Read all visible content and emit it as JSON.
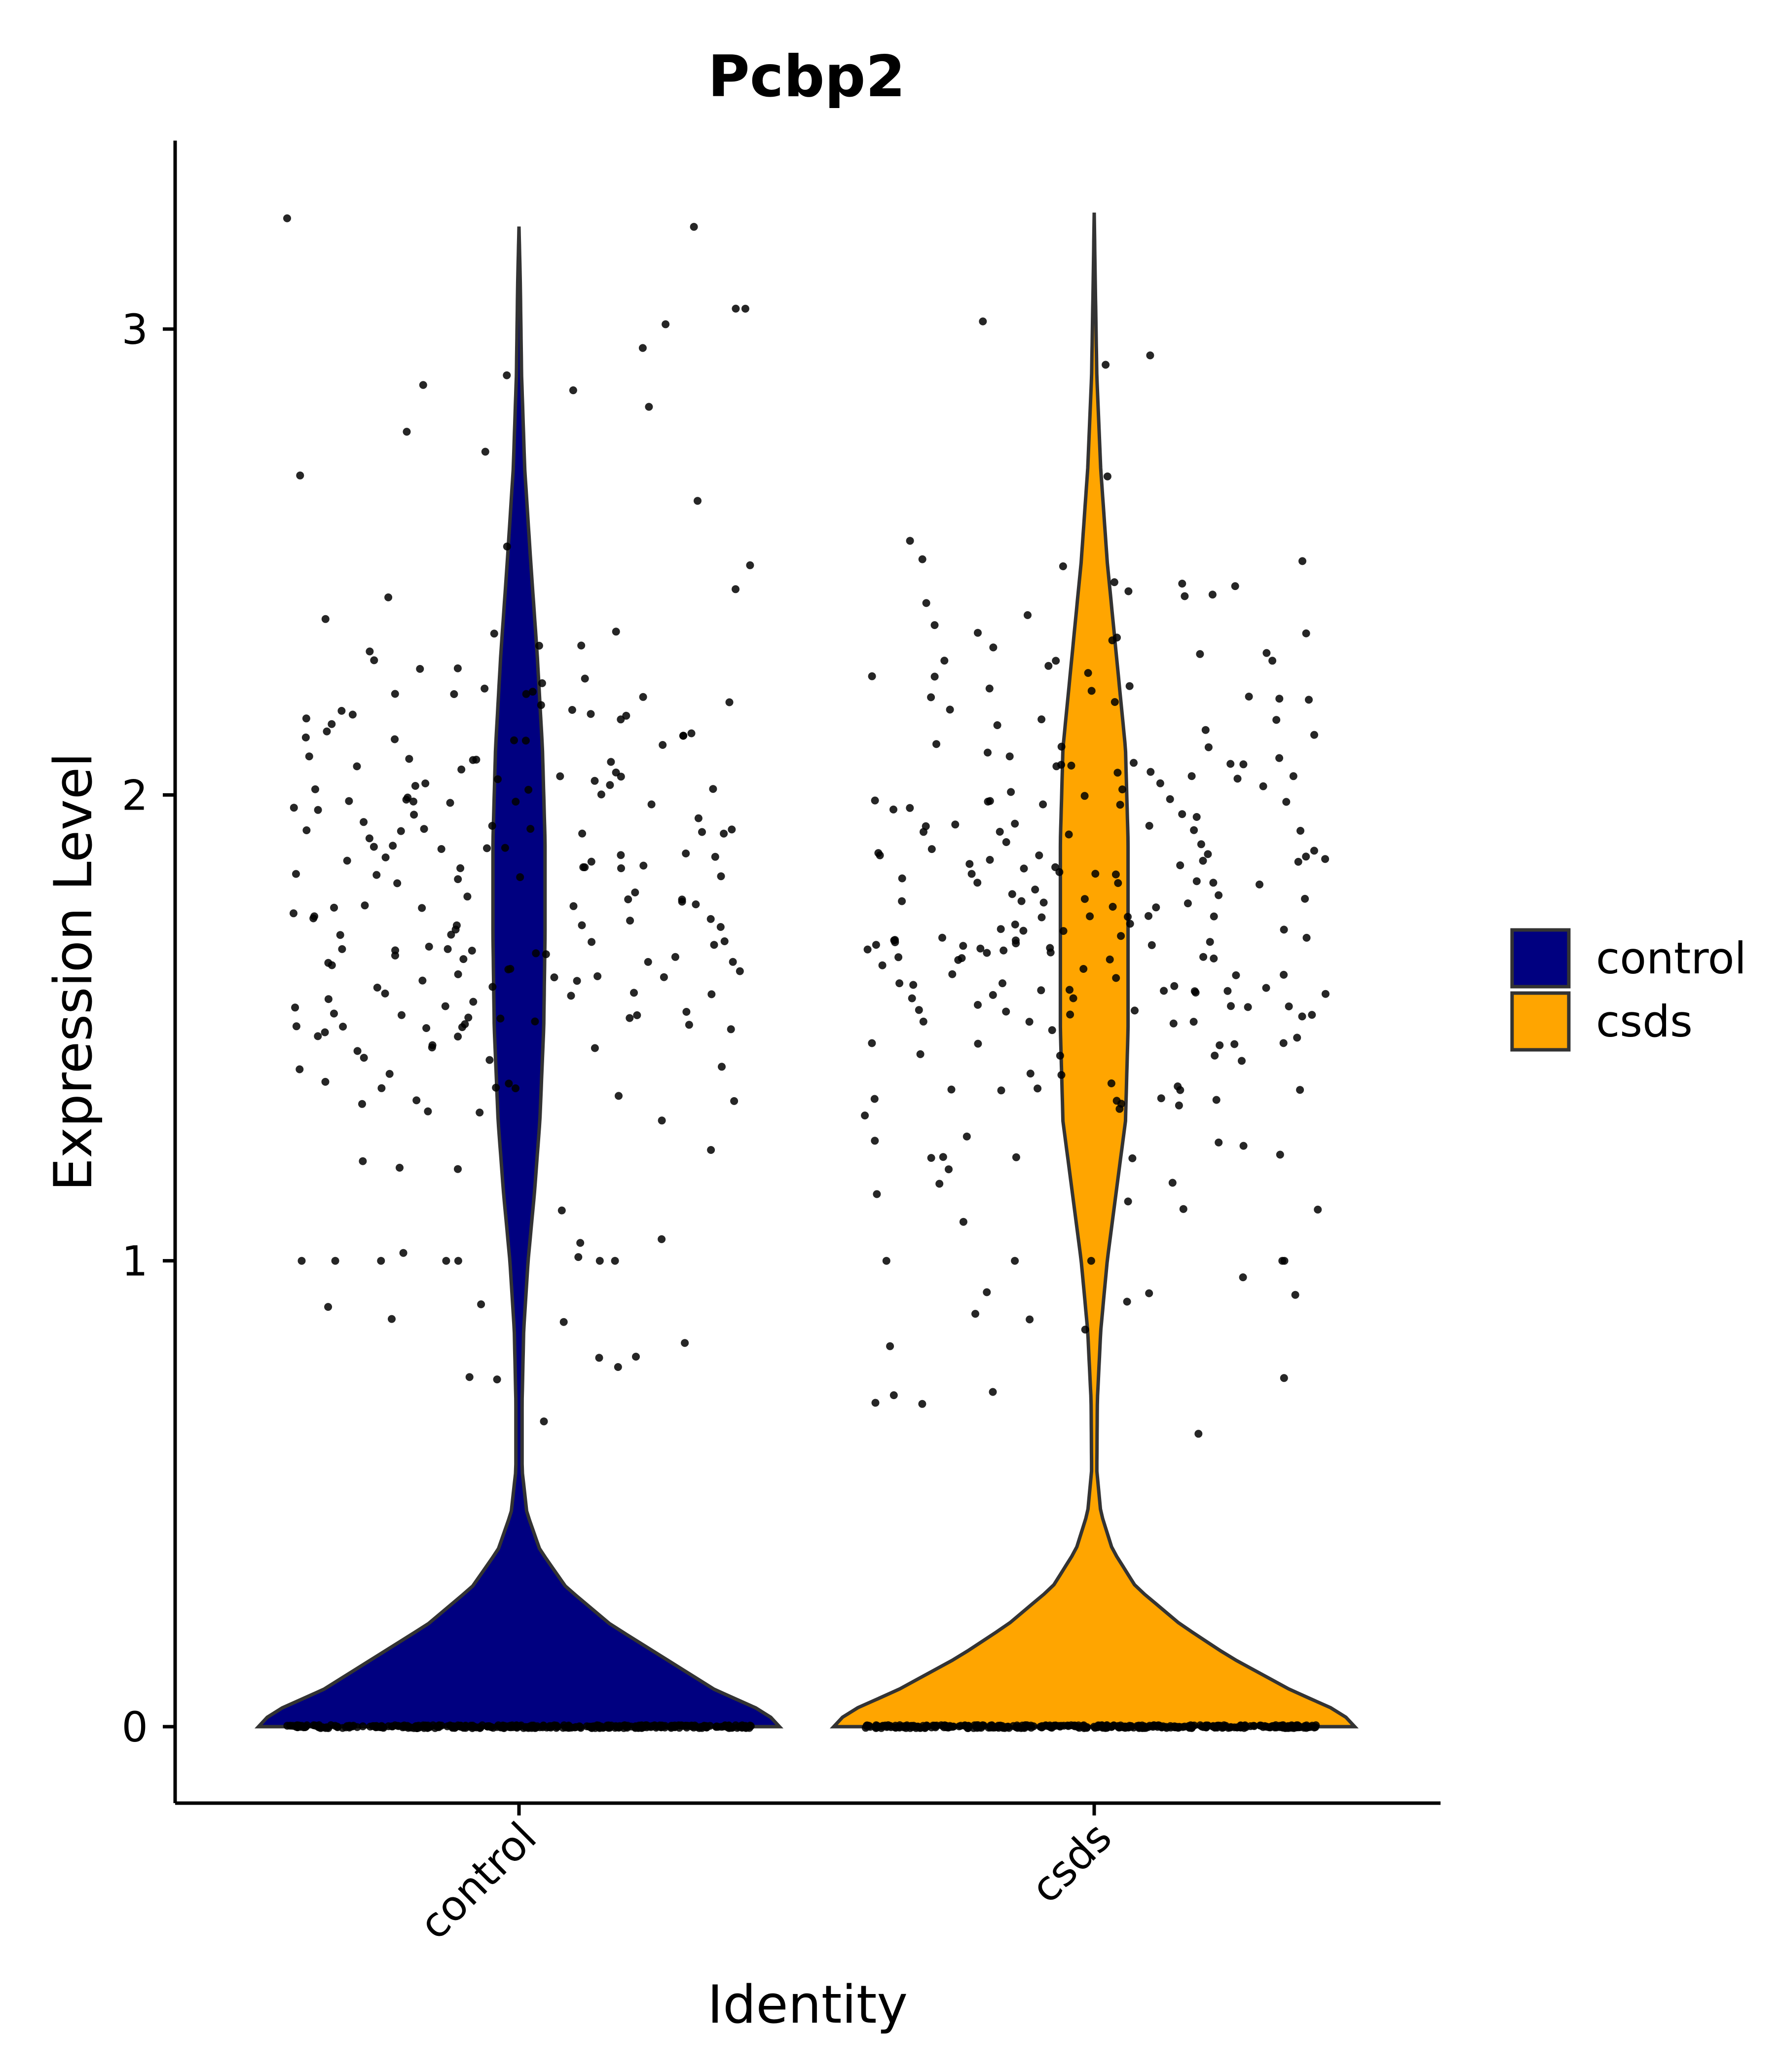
{
  "chart_data": {
    "type": "violin",
    "title": "Pcbp2",
    "xlabel": "Identity",
    "ylabel": "Expression Level",
    "categories": [
      "control",
      "csds"
    ],
    "colors": {
      "control": "#000080",
      "csds": "#FFA500"
    },
    "ylim": [
      -0.16,
      3.27
    ],
    "yticks": [
      0,
      1,
      2,
      3
    ],
    "legend": {
      "placement": "right",
      "entries": [
        {
          "label": "control",
          "color": "#000080"
        },
        {
          "label": "csds",
          "color": "#FFA500"
        }
      ]
    },
    "grid": false,
    "series": [
      {
        "group": "control",
        "y_max": 3.22,
        "density_profile": [
          {
            "y": 0.0,
            "w": 1.0
          },
          {
            "y": 0.03,
            "w": 0.95
          },
          {
            "y": 0.08,
            "w": 0.75
          },
          {
            "y": 0.15,
            "w": 0.55
          },
          {
            "y": 0.22,
            "w": 0.35
          },
          {
            "y": 0.3,
            "w": 0.18
          },
          {
            "y": 0.38,
            "w": 0.08
          },
          {
            "y": 0.46,
            "w": 0.03
          },
          {
            "y": 0.55,
            "w": 0.012
          },
          {
            "y": 0.7,
            "w": 0.012
          },
          {
            "y": 0.85,
            "w": 0.018
          },
          {
            "y": 1.0,
            "w": 0.035
          },
          {
            "y": 1.15,
            "w": 0.06
          },
          {
            "y": 1.3,
            "w": 0.08
          },
          {
            "y": 1.5,
            "w": 0.095
          },
          {
            "y": 1.7,
            "w": 0.1
          },
          {
            "y": 1.9,
            "w": 0.1
          },
          {
            "y": 2.1,
            "w": 0.09
          },
          {
            "y": 2.3,
            "w": 0.07
          },
          {
            "y": 2.5,
            "w": 0.045
          },
          {
            "y": 2.7,
            "w": 0.022
          },
          {
            "y": 2.9,
            "w": 0.01
          },
          {
            "y": 3.1,
            "w": 0.005
          },
          {
            "y": 3.22,
            "w": 0.0
          }
        ],
        "n_points": 600,
        "n_zero": 360,
        "seed": 11
      },
      {
        "group": "csds",
        "y_max": 3.25,
        "density_profile": [
          {
            "y": 0.0,
            "w": 1.0
          },
          {
            "y": 0.03,
            "w": 0.95
          },
          {
            "y": 0.08,
            "w": 0.75
          },
          {
            "y": 0.15,
            "w": 0.52
          },
          {
            "y": 0.22,
            "w": 0.33
          },
          {
            "y": 0.3,
            "w": 0.16
          },
          {
            "y": 0.38,
            "w": 0.07
          },
          {
            "y": 0.46,
            "w": 0.025
          },
          {
            "y": 0.55,
            "w": 0.01
          },
          {
            "y": 0.7,
            "w": 0.012
          },
          {
            "y": 0.85,
            "w": 0.025
          },
          {
            "y": 1.0,
            "w": 0.05
          },
          {
            "y": 1.15,
            "w": 0.085
          },
          {
            "y": 1.3,
            "w": 0.12
          },
          {
            "y": 1.5,
            "w": 0.13
          },
          {
            "y": 1.7,
            "w": 0.13
          },
          {
            "y": 1.9,
            "w": 0.13
          },
          {
            "y": 2.1,
            "w": 0.12
          },
          {
            "y": 2.3,
            "w": 0.085
          },
          {
            "y": 2.5,
            "w": 0.05
          },
          {
            "y": 2.7,
            "w": 0.025
          },
          {
            "y": 2.9,
            "w": 0.01
          },
          {
            "y": 3.1,
            "w": 0.004
          },
          {
            "y": 3.25,
            "w": 0.0
          }
        ],
        "n_points": 640,
        "n_zero": 380,
        "seed": 29
      }
    ]
  }
}
